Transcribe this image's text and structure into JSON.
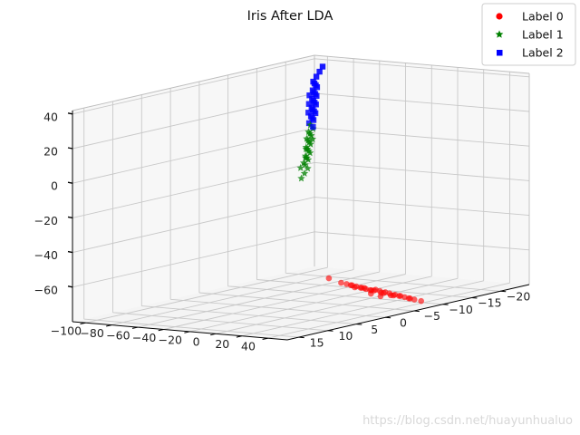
{
  "chart_data": {
    "type": "scatter3d",
    "title": "Iris After LDA",
    "xlabel": "",
    "ylabel": "",
    "zlabel": "",
    "view": {
      "elev": 20,
      "azim": -125
    },
    "axes": {
      "x": {
        "range": [
          -110,
          55
        ],
        "ticks": [
          -100,
          -80,
          -60,
          -40,
          -20,
          0,
          20,
          40
        ],
        "tick_labels": [
          "−100",
          "−80",
          "−60",
          "−40",
          "−20",
          "0",
          "20",
          "40"
        ]
      },
      "y": {
        "range": [
          -25,
          17
        ],
        "ticks": [
          15,
          10,
          5,
          0,
          -5,
          -10,
          -15,
          -20
        ],
        "tick_labels": [
          "15",
          "10",
          "5",
          "0",
          "−5",
          "−10",
          "−15",
          "−20"
        ]
      },
      "z": {
        "range": [
          -80,
          42
        ],
        "ticks": [
          40,
          20,
          0,
          -20,
          -40,
          -60
        ],
        "tick_labels": [
          "40",
          "20",
          "0",
          "−20",
          "−40",
          "−60"
        ]
      }
    },
    "grid": true,
    "legend": {
      "position": "top-right",
      "entries": [
        "Label 0",
        "Label 1",
        "Label 2"
      ]
    },
    "series": [
      {
        "name": "Label 0",
        "marker": "circle",
        "color": "#ff0000",
        "points": [
          [
            30,
            2,
            -60
          ],
          [
            33,
            1,
            -62
          ],
          [
            36,
            0,
            -64
          ],
          [
            39,
            -1,
            -66
          ],
          [
            42,
            -2,
            -67
          ],
          [
            45,
            -3,
            -69
          ],
          [
            48,
            -4,
            -71
          ],
          [
            51,
            -5,
            -73
          ],
          [
            32,
            1.5,
            -61
          ],
          [
            35,
            0.5,
            -63
          ],
          [
            38,
            -0.5,
            -65
          ],
          [
            41,
            -1.5,
            -66
          ],
          [
            44,
            -2.5,
            -68
          ],
          [
            47,
            -3.5,
            -70
          ],
          [
            50,
            -4.5,
            -72
          ],
          [
            53,
            -5.5,
            -74
          ],
          [
            34,
            1,
            -62
          ],
          [
            37,
            0,
            -64
          ],
          [
            40,
            -1,
            -66
          ],
          [
            43,
            -2,
            -68
          ],
          [
            46,
            -3,
            -70
          ],
          [
            49,
            -4,
            -71
          ],
          [
            52,
            -5,
            -73
          ],
          [
            36,
            1,
            -63
          ],
          [
            39,
            0,
            -64
          ],
          [
            42,
            -1,
            -66
          ],
          [
            45,
            -2,
            -68
          ],
          [
            48,
            -3,
            -70
          ],
          [
            44,
            0,
            -67
          ],
          [
            47,
            -1,
            -69
          ],
          [
            25,
            3,
            -57
          ],
          [
            56,
            -6,
            -75
          ]
        ]
      },
      {
        "name": "Label 1",
        "marker": "star",
        "color": "#008000",
        "points": [
          [
            -40,
            -8,
            -6
          ],
          [
            -42,
            -8,
            -4
          ],
          [
            -44,
            -9,
            -2
          ],
          [
            -46,
            -9,
            0
          ],
          [
            -48,
            -10,
            2
          ],
          [
            -50,
            -10,
            4
          ],
          [
            -52,
            -11,
            6
          ],
          [
            -54,
            -11,
            8
          ],
          [
            -56,
            -12,
            10
          ],
          [
            -45,
            -9,
            -1
          ],
          [
            -47,
            -10,
            1
          ],
          [
            -49,
            -10,
            3
          ],
          [
            -51,
            -11,
            5
          ],
          [
            -53,
            -11,
            7
          ],
          [
            -55,
            -12,
            9
          ],
          [
            -57,
            -12,
            11
          ],
          [
            -43,
            -8,
            -3
          ],
          [
            -41,
            -7,
            -5
          ],
          [
            -58,
            -13,
            12
          ],
          [
            -46,
            -9,
            -1
          ],
          [
            -50,
            -10,
            3
          ],
          [
            -54,
            -12,
            7
          ],
          [
            -38,
            -7,
            -8
          ],
          [
            -36,
            -6,
            -10
          ],
          [
            -60,
            -13,
            14
          ]
        ]
      },
      {
        "name": "Label 2",
        "marker": "square",
        "color": "#0000ff",
        "points": [
          [
            -62,
            -14,
            16
          ],
          [
            -64,
            -14,
            18
          ],
          [
            -66,
            -15,
            20
          ],
          [
            -68,
            -15,
            22
          ],
          [
            -70,
            -16,
            24
          ],
          [
            -72,
            -16,
            26
          ],
          [
            -74,
            -17,
            28
          ],
          [
            -76,
            -17,
            30
          ],
          [
            -78,
            -18,
            32
          ],
          [
            -80,
            -18,
            34
          ],
          [
            -65,
            -15,
            19
          ],
          [
            -67,
            -15,
            21
          ],
          [
            -69,
            -16,
            23
          ],
          [
            -71,
            -16,
            25
          ],
          [
            -73,
            -17,
            27
          ],
          [
            -75,
            -17,
            29
          ],
          [
            -77,
            -18,
            31
          ],
          [
            -79,
            -18,
            33
          ],
          [
            -63,
            -14,
            17
          ],
          [
            -61,
            -13,
            15
          ],
          [
            -82,
            -19,
            36
          ],
          [
            -70,
            -15,
            24
          ],
          [
            -74,
            -16,
            28
          ],
          [
            -66,
            -14,
            20
          ],
          [
            -86,
            -21,
            40
          ],
          [
            -58,
            -13,
            13
          ],
          [
            -84,
            -20,
            38
          ]
        ]
      }
    ]
  },
  "watermark": "https://blog.csdn.net/huayunhualuo"
}
